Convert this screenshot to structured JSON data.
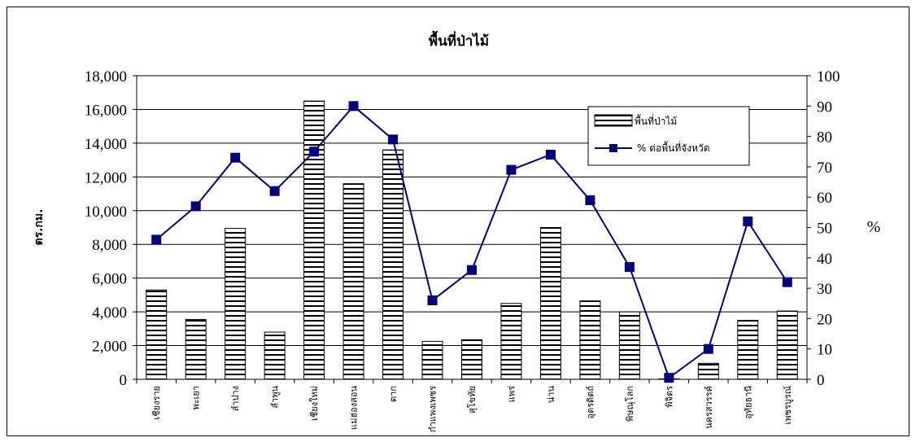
{
  "chart_data": {
    "type": "bar",
    "title": "พื้นที่ป่าไม้",
    "ylabel": "ตร.กม.",
    "y2label": "%",
    "ylim": [
      0,
      18000
    ],
    "y2lim": [
      0,
      100
    ],
    "yticks": [
      "0",
      "2,000",
      "4,000",
      "6,000",
      "8,000",
      "10,000",
      "12,000",
      "14,000",
      "16,000",
      "18,000"
    ],
    "y2ticks": [
      "0",
      "10",
      "20",
      "30",
      "40",
      "50",
      "60",
      "70",
      "80",
      "90",
      "100"
    ],
    "grid": true,
    "legend_position": "top-right",
    "categories": [
      "เชียงราย",
      "พะเยา",
      "ลำปาง",
      "ลำพูน",
      "เชียงใหม่",
      "แม่ฮ่องสอน",
      "ตาก",
      "กำแพงเพชร",
      "สุโขทัย",
      "แพร่",
      "น่าน",
      "อุตรดิตถ์",
      "พิษณุโลก",
      "พิจิตร",
      "นครสวรรค์",
      "อุทัยธานี",
      "เพชรบูรณ์"
    ],
    "series": [
      {
        "name": "พื้นที่ป่าไม้",
        "type": "bar",
        "axis": "left",
        "values": [
          5300,
          3550,
          8950,
          2800,
          16500,
          11600,
          13600,
          2250,
          2350,
          4500,
          9000,
          4650,
          4000,
          30,
          950,
          3500,
          4050
        ]
      },
      {
        "name": "% ต่อพื้นที่จังหวัด",
        "type": "line",
        "axis": "right",
        "values": [
          46,
          57,
          73,
          62,
          75,
          90,
          79,
          26,
          36,
          69,
          74,
          59,
          37,
          0.5,
          10,
          52,
          32
        ],
        "color": "#000080"
      }
    ]
  }
}
